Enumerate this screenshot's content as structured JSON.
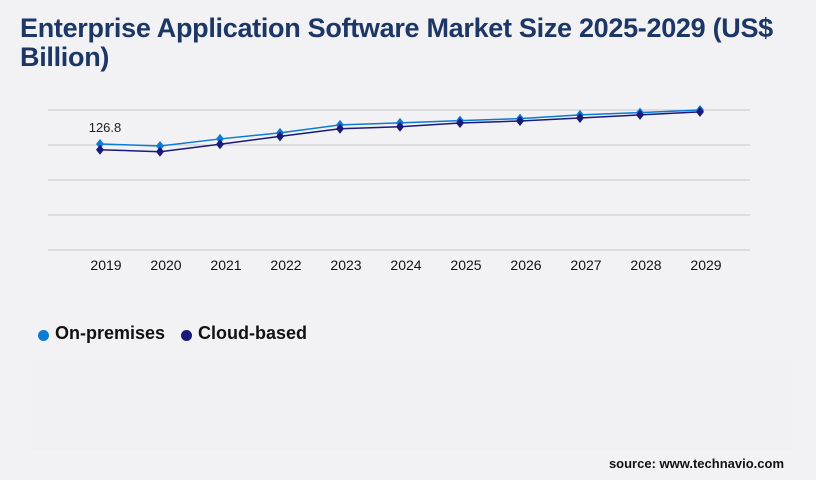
{
  "title": "Enterprise Application Software Market Size 2025-2029 (US$ Billion)",
  "source": "source: www.technavio.com",
  "colors": {
    "on_premises": "#0a7bd6",
    "cloud_based": "#1a1a7a",
    "grid": "#c8c8cc",
    "title": "#1c3766"
  },
  "chart_data": {
    "type": "line",
    "title": "Enterprise Application Software Market Size 2025-2029 (US$ Billion)",
    "xlabel": "",
    "ylabel": "",
    "categories": [
      "2019",
      "2020",
      "2021",
      "2022",
      "2023",
      "2024",
      "2025",
      "2026",
      "2027",
      "2028",
      "2029"
    ],
    "ylim": [
      0,
      167.4
    ],
    "grid": true,
    "legend": "bottom-left",
    "series": [
      {
        "name": "On-premises",
        "values": [
          126.8,
          124.4,
          132.8,
          140.0,
          149.6,
          152.0,
          154.7,
          157.1,
          161.5,
          164.3,
          167.4
        ]
      },
      {
        "name": "Cloud-based",
        "values": [
          119.9,
          117.5,
          126.4,
          135.9,
          145.0,
          147.4,
          151.9,
          154.3,
          157.9,
          161.5,
          165.1
        ]
      }
    ],
    "annotations": [
      {
        "text": "126.8",
        "category": "2019",
        "series": "On-premises"
      }
    ]
  }
}
